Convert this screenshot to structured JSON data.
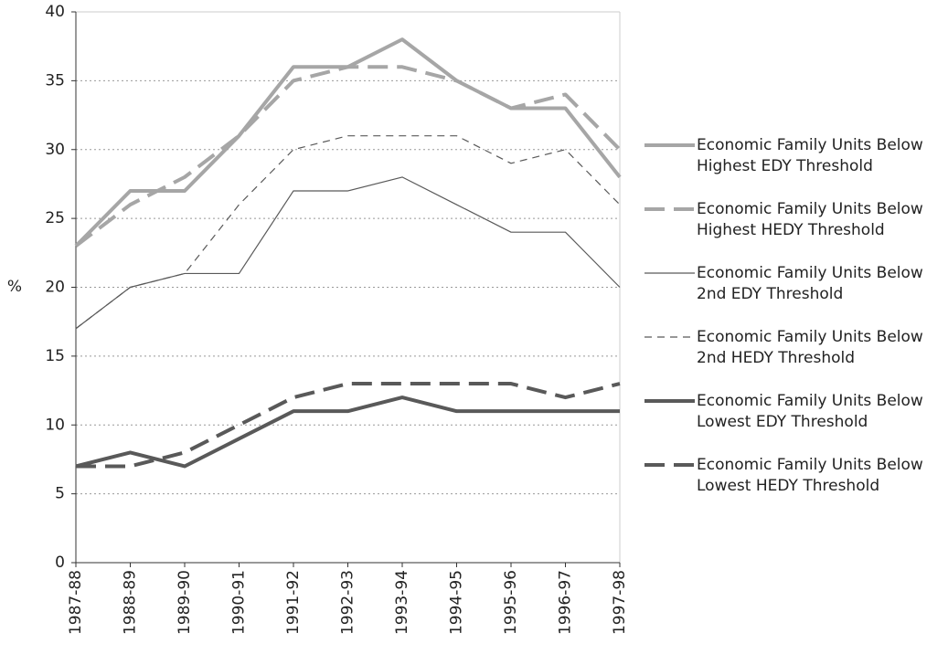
{
  "chart_data": {
    "type": "line",
    "y_label": "%",
    "categories": [
      "1987-88",
      "1988-89",
      "1989-90",
      "1990-91",
      "1991-92",
      "1992-93",
      "1993-94",
      "1994-95",
      "1995-96",
      "1996-97",
      "1997-98"
    ],
    "ylim": [
      0,
      40
    ],
    "yticks": [
      0,
      5,
      10,
      15,
      20,
      25,
      30,
      35,
      40
    ],
    "grid": true,
    "legend": "right",
    "series": [
      {
        "name": "Economic Family Units Below Highest EDY Threshold",
        "color": "#a6a6a6",
        "linestyle": "solid",
        "linewidth": "thick",
        "values": [
          23,
          27,
          27,
          31,
          36,
          36,
          38,
          35,
          33,
          33,
          28
        ]
      },
      {
        "name": "Economic Family Units Below Highest HEDY Threshold",
        "color": "#a6a6a6",
        "linestyle": "dashed",
        "linewidth": "thick",
        "values": [
          23,
          26,
          28,
          31,
          35,
          36,
          36,
          35,
          33,
          34,
          30
        ]
      },
      {
        "name": "Economic Family Units Below 2nd EDY Threshold",
        "color": "#595959",
        "linestyle": "solid",
        "linewidth": "thin",
        "values": [
          17,
          20,
          21,
          21,
          27,
          27,
          28,
          26,
          24,
          24,
          20
        ]
      },
      {
        "name": "Economic Family Units Below 2nd HEDY Threshold",
        "color": "#595959",
        "linestyle": "dashed",
        "linewidth": "thin",
        "values": [
          17,
          20,
          21,
          26,
          30,
          31,
          31,
          31,
          29,
          30,
          26
        ]
      },
      {
        "name": "Economic Family Units Below Lowest EDY Threshold",
        "color": "#595959",
        "linestyle": "solid",
        "linewidth": "thick",
        "values": [
          7,
          8,
          7,
          9,
          11,
          11,
          12,
          11,
          11,
          11,
          11
        ]
      },
      {
        "name": "Economic Family Units Below Lowest HEDY Threshold",
        "color": "#595959",
        "linestyle": "dashed",
        "linewidth": "thick",
        "values": [
          7,
          7,
          8,
          10,
          12,
          13,
          13,
          13,
          13,
          12,
          13
        ]
      }
    ]
  }
}
